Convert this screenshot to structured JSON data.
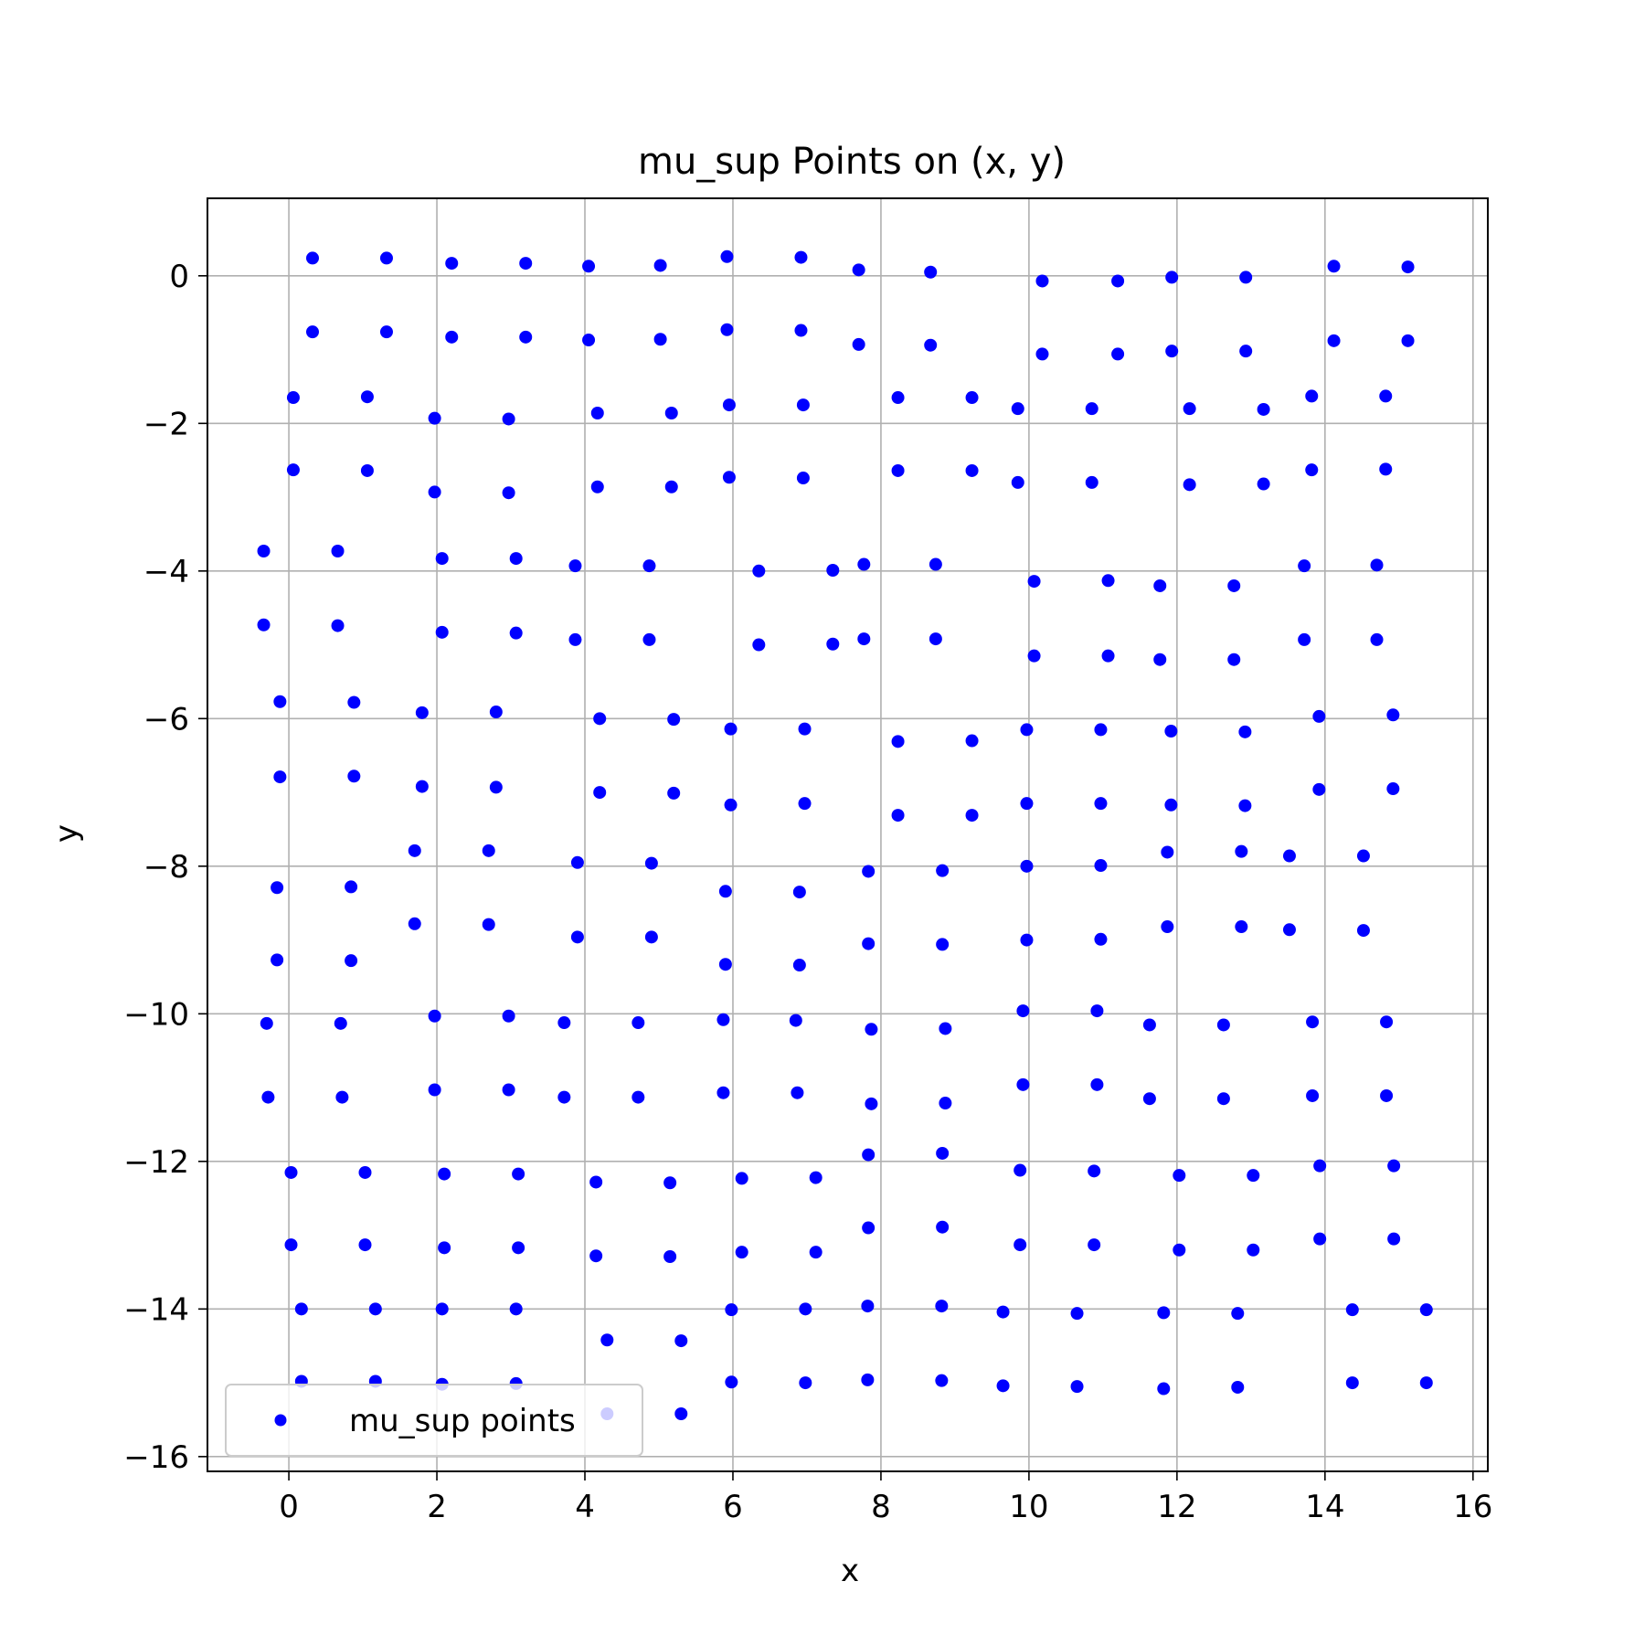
{
  "chart_data": {
    "type": "scatter",
    "title": "mu_sup Points on (x, y)",
    "xlabel": "x",
    "ylabel": "y",
    "xlim": [
      -1.1,
      16.2
    ],
    "ylim": [
      -16.2,
      1.05
    ],
    "xticks": [
      0,
      2,
      4,
      6,
      8,
      10,
      12,
      14,
      16
    ],
    "yticks": [
      0,
      -2,
      -4,
      -6,
      -8,
      -10,
      -12,
      -14,
      -16
    ],
    "xtick_labels": [
      "0",
      "2",
      "4",
      "6",
      "8",
      "10",
      "12",
      "14",
      "16"
    ],
    "ytick_labels": [
      "0",
      "−2",
      "−4",
      "−6",
      "−8",
      "−10",
      "−12",
      "−14",
      "−16"
    ],
    "grid": true,
    "legend_position": "lower-left",
    "series": [
      {
        "name": "mu_sup points",
        "color": "#0000ff",
        "points": [
          [
            0.32,
            0.24
          ],
          [
            1.32,
            0.24
          ],
          [
            2.2,
            0.17
          ],
          [
            3.2,
            0.17
          ],
          [
            4.05,
            0.13
          ],
          [
            5.02,
            0.14
          ],
          [
            5.92,
            0.26
          ],
          [
            6.92,
            0.25
          ],
          [
            7.7,
            0.08
          ],
          [
            8.67,
            0.05
          ],
          [
            10.18,
            -0.07
          ],
          [
            11.2,
            -0.07
          ],
          [
            11.93,
            -0.02
          ],
          [
            12.93,
            -0.02
          ],
          [
            14.12,
            0.13
          ],
          [
            15.12,
            0.12
          ],
          [
            0.32,
            -0.76
          ],
          [
            1.32,
            -0.76
          ],
          [
            2.2,
            -0.83
          ],
          [
            3.2,
            -0.83
          ],
          [
            4.05,
            -0.87
          ],
          [
            5.02,
            -0.86
          ],
          [
            5.92,
            -0.73
          ],
          [
            6.92,
            -0.74
          ],
          [
            7.7,
            -0.93
          ],
          [
            8.67,
            -0.94
          ],
          [
            10.18,
            -1.06
          ],
          [
            11.2,
            -1.06
          ],
          [
            11.93,
            -1.02
          ],
          [
            12.93,
            -1.02
          ],
          [
            14.12,
            -0.88
          ],
          [
            15.12,
            -0.88
          ],
          [
            0.06,
            -1.65
          ],
          [
            1.06,
            -1.64
          ],
          [
            1.97,
            -1.93
          ],
          [
            2.97,
            -1.94
          ],
          [
            4.17,
            -1.86
          ],
          [
            5.17,
            -1.86
          ],
          [
            5.95,
            -1.75
          ],
          [
            6.95,
            -1.75
          ],
          [
            8.23,
            -1.65
          ],
          [
            9.23,
            -1.65
          ],
          [
            9.85,
            -1.8
          ],
          [
            10.85,
            -1.8
          ],
          [
            12.17,
            -1.8
          ],
          [
            13.17,
            -1.81
          ],
          [
            13.82,
            -1.63
          ],
          [
            14.82,
            -1.63
          ],
          [
            0.06,
            -2.63
          ],
          [
            1.06,
            -2.64
          ],
          [
            1.97,
            -2.93
          ],
          [
            2.97,
            -2.94
          ],
          [
            4.17,
            -2.86
          ],
          [
            5.17,
            -2.86
          ],
          [
            5.95,
            -2.73
          ],
          [
            6.95,
            -2.74
          ],
          [
            8.23,
            -2.64
          ],
          [
            9.23,
            -2.64
          ],
          [
            9.85,
            -2.8
          ],
          [
            10.85,
            -2.8
          ],
          [
            12.17,
            -2.83
          ],
          [
            13.17,
            -2.82
          ],
          [
            13.82,
            -2.63
          ],
          [
            14.82,
            -2.62
          ],
          [
            -0.34,
            -3.73
          ],
          [
            0.66,
            -3.73
          ],
          [
            2.07,
            -3.83
          ],
          [
            3.07,
            -3.83
          ],
          [
            3.87,
            -3.93
          ],
          [
            4.87,
            -3.93
          ],
          [
            6.35,
            -4.0
          ],
          [
            7.35,
            -3.99
          ],
          [
            7.77,
            -3.91
          ],
          [
            8.74,
            -3.91
          ],
          [
            10.07,
            -4.14
          ],
          [
            11.07,
            -4.13
          ],
          [
            11.77,
            -4.2
          ],
          [
            12.77,
            -4.2
          ],
          [
            13.72,
            -3.93
          ],
          [
            14.7,
            -3.92
          ],
          [
            -0.34,
            -4.73
          ],
          [
            0.66,
            -4.74
          ],
          [
            2.07,
            -4.83
          ],
          [
            3.07,
            -4.84
          ],
          [
            3.87,
            -4.93
          ],
          [
            4.87,
            -4.93
          ],
          [
            6.35,
            -5.0
          ],
          [
            7.35,
            -4.99
          ],
          [
            7.77,
            -4.92
          ],
          [
            8.74,
            -4.92
          ],
          [
            10.07,
            -5.15
          ],
          [
            11.07,
            -5.15
          ],
          [
            11.77,
            -5.2
          ],
          [
            12.77,
            -5.2
          ],
          [
            13.72,
            -4.93
          ],
          [
            14.7,
            -4.93
          ],
          [
            -0.12,
            -5.77
          ],
          [
            0.88,
            -5.78
          ],
          [
            1.8,
            -5.92
          ],
          [
            2.8,
            -5.91
          ],
          [
            4.2,
            -6.0
          ],
          [
            5.2,
            -6.01
          ],
          [
            5.97,
            -6.14
          ],
          [
            6.97,
            -6.14
          ],
          [
            8.23,
            -6.31
          ],
          [
            9.23,
            -6.3
          ],
          [
            9.97,
            -6.15
          ],
          [
            10.97,
            -6.15
          ],
          [
            11.92,
            -6.17
          ],
          [
            12.92,
            -6.18
          ],
          [
            13.92,
            -5.97
          ],
          [
            14.92,
            -5.95
          ],
          [
            -0.12,
            -6.79
          ],
          [
            0.88,
            -6.78
          ],
          [
            1.8,
            -6.92
          ],
          [
            2.8,
            -6.93
          ],
          [
            4.2,
            -7.0
          ],
          [
            5.2,
            -7.01
          ],
          [
            5.97,
            -7.17
          ],
          [
            6.97,
            -7.15
          ],
          [
            8.23,
            -7.31
          ],
          [
            9.23,
            -7.31
          ],
          [
            9.97,
            -7.15
          ],
          [
            10.97,
            -7.15
          ],
          [
            11.92,
            -7.17
          ],
          [
            12.92,
            -7.18
          ],
          [
            13.92,
            -6.96
          ],
          [
            14.92,
            -6.95
          ],
          [
            1.7,
            -7.79
          ],
          [
            2.7,
            -7.79
          ],
          [
            3.9,
            -7.95
          ],
          [
            4.9,
            -7.96
          ],
          [
            7.83,
            -8.07
          ],
          [
            8.83,
            -8.06
          ],
          [
            9.97,
            -8.0
          ],
          [
            10.97,
            -7.99
          ],
          [
            11.87,
            -7.81
          ],
          [
            12.87,
            -7.8
          ],
          [
            13.52,
            -7.86
          ],
          [
            14.52,
            -7.86
          ],
          [
            -0.16,
            -8.29
          ],
          [
            0.84,
            -8.28
          ],
          [
            5.9,
            -8.34
          ],
          [
            6.9,
            -8.35
          ],
          [
            1.7,
            -8.78
          ],
          [
            2.7,
            -8.79
          ],
          [
            3.9,
            -8.96
          ],
          [
            4.9,
            -8.96
          ],
          [
            7.83,
            -9.05
          ],
          [
            8.83,
            -9.06
          ],
          [
            9.97,
            -9.0
          ],
          [
            10.97,
            -8.99
          ],
          [
            11.87,
            -8.82
          ],
          [
            12.87,
            -8.82
          ],
          [
            13.52,
            -8.86
          ],
          [
            14.52,
            -8.87
          ],
          [
            -0.16,
            -9.27
          ],
          [
            0.84,
            -9.28
          ],
          [
            5.9,
            -9.33
          ],
          [
            6.9,
            -9.34
          ],
          [
            -0.3,
            -10.13
          ],
          [
            0.7,
            -10.13
          ],
          [
            1.97,
            -10.03
          ],
          [
            2.97,
            -10.03
          ],
          [
            3.72,
            -10.12
          ],
          [
            4.72,
            -10.12
          ],
          [
            5.87,
            -10.08
          ],
          [
            6.85,
            -10.09
          ],
          [
            7.87,
            -10.21
          ],
          [
            8.87,
            -10.2
          ],
          [
            9.92,
            -9.96
          ],
          [
            10.92,
            -9.96
          ],
          [
            11.63,
            -10.15
          ],
          [
            12.63,
            -10.15
          ],
          [
            13.83,
            -10.11
          ],
          [
            14.83,
            -10.11
          ],
          [
            -0.28,
            -11.13
          ],
          [
            0.72,
            -11.13
          ],
          [
            1.97,
            -11.03
          ],
          [
            2.97,
            -11.03
          ],
          [
            3.72,
            -11.13
          ],
          [
            4.72,
            -11.13
          ],
          [
            5.87,
            -11.07
          ],
          [
            6.87,
            -11.07
          ],
          [
            7.87,
            -11.22
          ],
          [
            8.87,
            -11.21
          ],
          [
            9.92,
            -10.96
          ],
          [
            10.92,
            -10.96
          ],
          [
            11.63,
            -11.15
          ],
          [
            12.63,
            -11.15
          ],
          [
            13.83,
            -11.11
          ],
          [
            14.83,
            -11.11
          ],
          [
            0.03,
            -12.15
          ],
          [
            1.03,
            -12.15
          ],
          [
            2.1,
            -12.17
          ],
          [
            3.1,
            -12.17
          ],
          [
            4.15,
            -12.28
          ],
          [
            5.15,
            -12.29
          ],
          [
            6.12,
            -12.23
          ],
          [
            7.12,
            -12.22
          ],
          [
            7.83,
            -11.91
          ],
          [
            8.83,
            -11.89
          ],
          [
            9.88,
            -12.12
          ],
          [
            10.88,
            -12.13
          ],
          [
            12.03,
            -12.19
          ],
          [
            13.03,
            -12.19
          ],
          [
            13.93,
            -12.06
          ],
          [
            14.93,
            -12.06
          ],
          [
            0.03,
            -13.13
          ],
          [
            1.03,
            -13.13
          ],
          [
            2.1,
            -13.17
          ],
          [
            3.1,
            -13.17
          ],
          [
            4.15,
            -13.28
          ],
          [
            5.15,
            -13.29
          ],
          [
            6.12,
            -13.23
          ],
          [
            7.12,
            -13.23
          ],
          [
            7.83,
            -12.9
          ],
          [
            8.83,
            -12.89
          ],
          [
            9.88,
            -13.13
          ],
          [
            10.88,
            -13.13
          ],
          [
            12.03,
            -13.2
          ],
          [
            13.03,
            -13.2
          ],
          [
            13.93,
            -13.05
          ],
          [
            14.93,
            -13.05
          ],
          [
            0.17,
            -14.0
          ],
          [
            1.17,
            -14.0
          ],
          [
            2.07,
            -14.0
          ],
          [
            3.07,
            -14.0
          ],
          [
            4.3,
            -14.42
          ],
          [
            5.3,
            -14.43
          ],
          [
            5.98,
            -14.01
          ],
          [
            6.98,
            -14.0
          ],
          [
            7.82,
            -13.96
          ],
          [
            8.82,
            -13.96
          ],
          [
            9.65,
            -14.04
          ],
          [
            10.65,
            -14.06
          ],
          [
            11.82,
            -14.05
          ],
          [
            12.82,
            -14.06
          ],
          [
            14.37,
            -14.01
          ],
          [
            15.37,
            -14.01
          ],
          [
            0.17,
            -14.98
          ],
          [
            1.17,
            -14.98
          ],
          [
            2.07,
            -15.02
          ],
          [
            3.07,
            -15.01
          ],
          [
            4.3,
            -15.42
          ],
          [
            5.3,
            -15.42
          ],
          [
            5.98,
            -14.99
          ],
          [
            6.98,
            -15.0
          ],
          [
            7.82,
            -14.96
          ],
          [
            8.82,
            -14.97
          ],
          [
            9.65,
            -15.04
          ],
          [
            10.65,
            -15.05
          ],
          [
            11.82,
            -15.08
          ],
          [
            12.82,
            -15.06
          ],
          [
            14.37,
            -15.0
          ],
          [
            15.37,
            -15.0
          ]
        ]
      }
    ]
  }
}
